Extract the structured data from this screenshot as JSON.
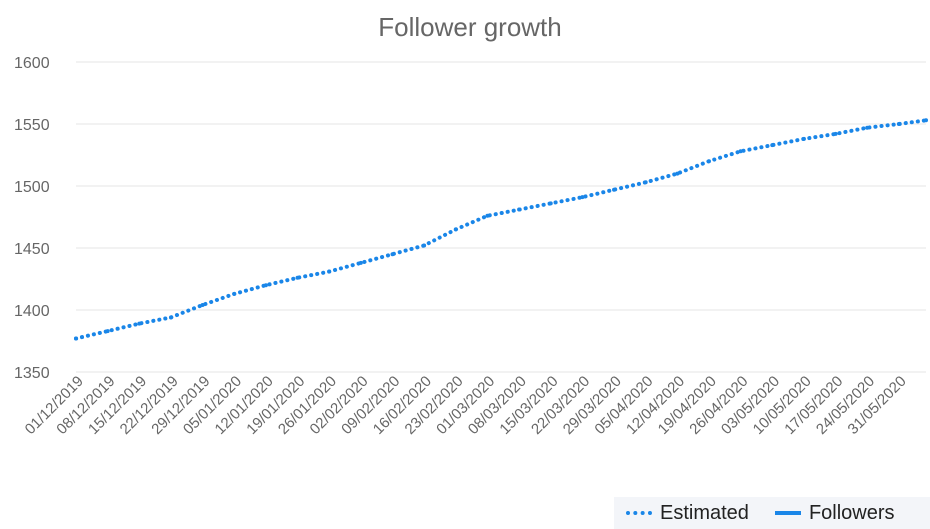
{
  "colors": {
    "series": "#1a86e8"
  },
  "chart_data": {
    "type": "line",
    "title": "Follower growth",
    "xlabel": "",
    "ylabel": "",
    "ylim": [
      1350,
      1600
    ],
    "yticks": [
      1350,
      1400,
      1450,
      1500,
      1550,
      1600
    ],
    "xlim": [
      "01/12/2019",
      "06/06/2020"
    ],
    "xtick_labels": [
      "01/12/2019",
      "08/12/2019",
      "15/12/2019",
      "22/12/2019",
      "29/12/2019",
      "05/01/2020",
      "12/01/2020",
      "19/01/2020",
      "26/01/2020",
      "02/02/2020",
      "09/02/2020",
      "16/02/2020",
      "23/02/2020",
      "01/03/2020",
      "08/03/2020",
      "15/03/2020",
      "22/03/2020",
      "29/03/2020",
      "05/04/2020",
      "12/04/2020",
      "19/04/2020",
      "26/04/2020",
      "03/05/2020",
      "10/05/2020",
      "17/05/2020",
      "24/05/2020",
      "31/05/2020"
    ],
    "grid": true,
    "legend_position": "bottom-right",
    "series": [
      {
        "name": "Estimated",
        "style": "dotted",
        "x": [
          "01/12/2019",
          "08/12/2019",
          "15/12/2019",
          "22/12/2019",
          "29/12/2019",
          "05/01/2020",
          "12/01/2020",
          "19/01/2020",
          "26/01/2020",
          "02/02/2020",
          "09/02/2020",
          "16/02/2020",
          "23/02/2020",
          "01/03/2020",
          "08/03/2020",
          "15/03/2020",
          "22/03/2020",
          "29/03/2020",
          "05/04/2020",
          "12/04/2020",
          "19/04/2020",
          "26/04/2020",
          "03/05/2020",
          "10/05/2020",
          "17/05/2020",
          "24/05/2020",
          "31/05/2020",
          "06/06/2020"
        ],
        "values": [
          1377,
          1383,
          1389,
          1394,
          1404,
          1413,
          1420,
          1426,
          1431,
          1438,
          1445,
          1452,
          1465,
          1476,
          1481,
          1486,
          1491,
          1497,
          1503,
          1510,
          1520,
          1528,
          1533,
          1538,
          1542,
          1547,
          1550,
          1553
        ]
      }
    ],
    "legend": [
      {
        "name": "Estimated",
        "style": "dotted"
      },
      {
        "name": "Followers",
        "style": "solid"
      }
    ]
  }
}
